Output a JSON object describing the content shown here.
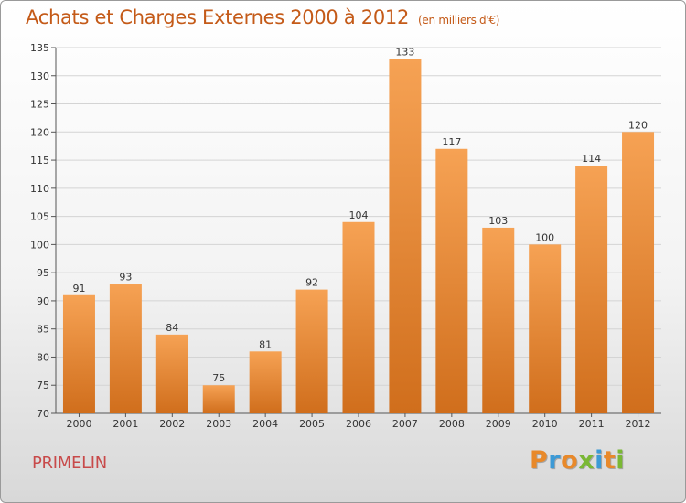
{
  "header": {
    "title": "Achats et Charges Externes 2000 à 2012",
    "subtitle": "(en milliers d'€)"
  },
  "footer": {
    "city": "PRIMELIN",
    "logo": "Proxiti"
  },
  "colors": {
    "bar_light": "#f6a254",
    "bar_dark": "#d06e1c",
    "title": "#c45a18",
    "city": "#c84a4a",
    "axis": "#555555",
    "grid": "#d4d4d4",
    "logo_letters": [
      "#e8892a",
      "#3c9ad6",
      "#e8892a",
      "#7ab834",
      "#3c9ad6",
      "#e8892a",
      "#7ab834"
    ]
  },
  "chart_data": {
    "type": "bar",
    "title": "Achats et Charges Externes 2000 à 2012",
    "subtitle": "(en milliers d'€)",
    "categories": [
      "2000",
      "2001",
      "2002",
      "2003",
      "2004",
      "2005",
      "2006",
      "2007",
      "2008",
      "2009",
      "2010",
      "2011",
      "2012"
    ],
    "values": [
      91,
      93,
      84,
      75,
      81,
      92,
      104,
      133,
      117,
      103,
      100,
      114,
      120
    ],
    "ylim": [
      70,
      135
    ],
    "yticks": [
      70,
      75,
      80,
      85,
      90,
      95,
      100,
      105,
      110,
      115,
      120,
      125,
      130,
      135
    ],
    "xlabel": "",
    "ylabel": "",
    "grid": true,
    "data_labels": true
  }
}
